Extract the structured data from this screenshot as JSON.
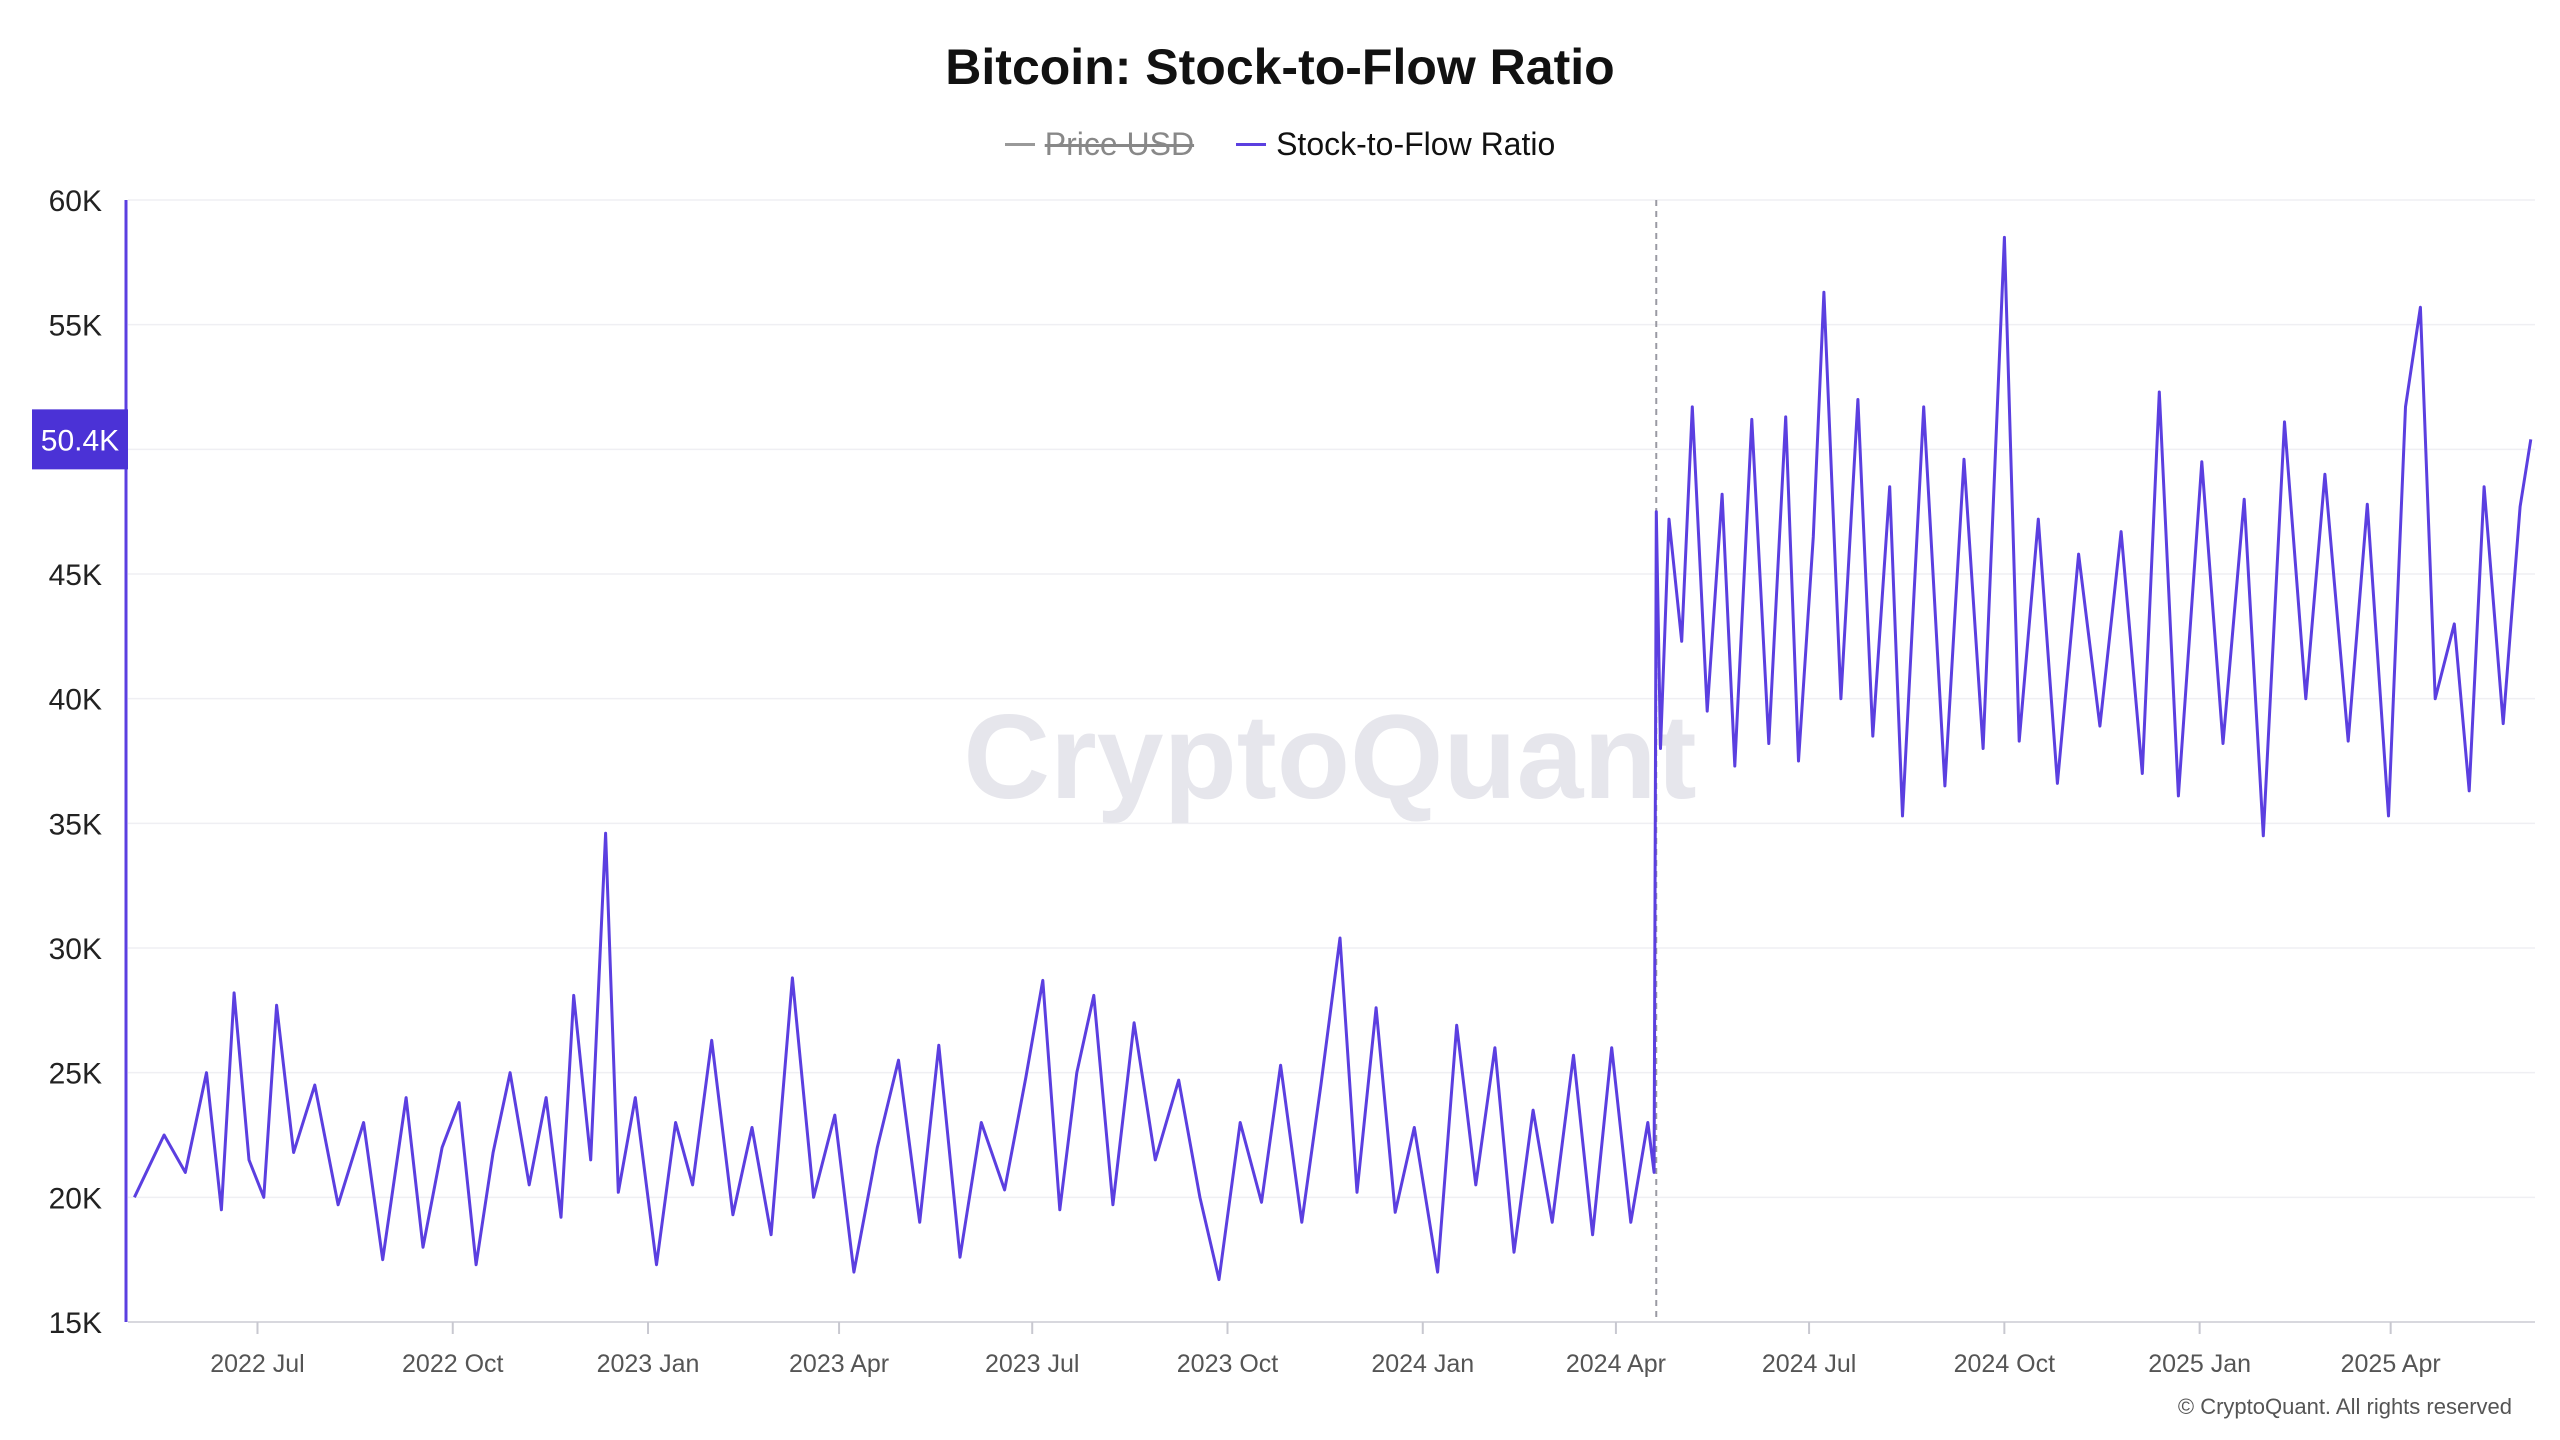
{
  "chart_data": {
    "type": "line",
    "title": "Bitcoin: Stock-to-Flow Ratio",
    "legend": [
      {
        "name": "Price USD",
        "color": "#999999",
        "hidden": true
      },
      {
        "name": "Stock-to-Flow Ratio",
        "color": "#5b3fe0",
        "hidden": false
      }
    ],
    "legend_position": "top-center",
    "y_ticks": [
      "15K",
      "20K",
      "25K",
      "30K",
      "35K",
      "40K",
      "45K",
      "50K",
      "55K",
      "60K"
    ],
    "y_tick_values": [
      15000,
      20000,
      25000,
      30000,
      35000,
      40000,
      45000,
      50000,
      55000,
      60000
    ],
    "ylim": [
      15000,
      60000
    ],
    "x_ticks": [
      "2022 Jul",
      "2022 Oct",
      "2023 Jan",
      "2023 Apr",
      "2023 Jul",
      "2023 Oct",
      "2024 Jan",
      "2024 Apr",
      "2024 Jul",
      "2024 Oct",
      "2025 Jan",
      "2025 Apr"
    ],
    "x_tick_dates": [
      "2022-07-01",
      "2022-10-01",
      "2023-01-01",
      "2023-04-01",
      "2023-07-01",
      "2023-10-01",
      "2024-01-01",
      "2024-04-01",
      "2024-07-01",
      "2024-10-01",
      "2025-01-01",
      "2025-04-01"
    ],
    "xlim": [
      "2022-05-01",
      "2025-06-08"
    ],
    "halving_marker_date": "2024-04-20",
    "last_value_label": "50.4K",
    "last_value": 50400,
    "grid": "horizontal",
    "series": [
      {
        "name": "Stock-to-Flow Ratio",
        "color": "#5b3fe0",
        "points": [
          [
            "2022-05-04",
            20000
          ],
          [
            "2022-05-18",
            22500
          ],
          [
            "2022-05-28",
            21000
          ],
          [
            "2022-06-07",
            25000
          ],
          [
            "2022-06-14",
            19500
          ],
          [
            "2022-06-20",
            28200
          ],
          [
            "2022-06-27",
            21500
          ],
          [
            "2022-07-04",
            20000
          ],
          [
            "2022-07-10",
            27700
          ],
          [
            "2022-07-18",
            21800
          ],
          [
            "2022-07-28",
            24500
          ],
          [
            "2022-08-08",
            19700
          ],
          [
            "2022-08-20",
            23000
          ],
          [
            "2022-08-29",
            17500
          ],
          [
            "2022-09-09",
            24000
          ],
          [
            "2022-09-17",
            18000
          ],
          [
            "2022-09-26",
            22000
          ],
          [
            "2022-10-04",
            23800
          ],
          [
            "2022-10-12",
            17300
          ],
          [
            "2022-10-20",
            21800
          ],
          [
            "2022-10-28",
            25000
          ],
          [
            "2022-11-06",
            20500
          ],
          [
            "2022-11-14",
            24000
          ],
          [
            "2022-11-21",
            19200
          ],
          [
            "2022-11-27",
            28100
          ],
          [
            "2022-12-05",
            21500
          ],
          [
            "2022-12-12",
            34600
          ],
          [
            "2022-12-18",
            20200
          ],
          [
            "2022-12-26",
            24000
          ],
          [
            "2023-01-05",
            17300
          ],
          [
            "2023-01-14",
            23000
          ],
          [
            "2023-01-22",
            20500
          ],
          [
            "2023-01-31",
            26300
          ],
          [
            "2023-02-10",
            19300
          ],
          [
            "2023-02-19",
            22800
          ],
          [
            "2023-02-28",
            18500
          ],
          [
            "2023-03-10",
            28800
          ],
          [
            "2023-03-20",
            20000
          ],
          [
            "2023-03-30",
            23300
          ],
          [
            "2023-04-08",
            17000
          ],
          [
            "2023-04-19",
            22000
          ],
          [
            "2023-04-29",
            25500
          ],
          [
            "2023-05-09",
            19000
          ],
          [
            "2023-05-18",
            26100
          ],
          [
            "2023-05-28",
            17600
          ],
          [
            "2023-06-07",
            23000
          ],
          [
            "2023-06-18",
            20300
          ],
          [
            "2023-06-28",
            24800
          ],
          [
            "2023-07-06",
            28700
          ],
          [
            "2023-07-14",
            19500
          ],
          [
            "2023-07-22",
            25000
          ],
          [
            "2023-07-30",
            28100
          ],
          [
            "2023-08-08",
            19700
          ],
          [
            "2023-08-18",
            27000
          ],
          [
            "2023-08-28",
            21500
          ],
          [
            "2023-09-08",
            24700
          ],
          [
            "2023-09-18",
            20000
          ],
          [
            "2023-09-27",
            16700
          ],
          [
            "2023-10-07",
            23000
          ],
          [
            "2023-10-17",
            19800
          ],
          [
            "2023-10-26",
            25300
          ],
          [
            "2023-11-05",
            19000
          ],
          [
            "2023-11-14",
            24500
          ],
          [
            "2023-11-23",
            30400
          ],
          [
            "2023-12-01",
            20200
          ],
          [
            "2023-12-10",
            27600
          ],
          [
            "2023-12-19",
            19400
          ],
          [
            "2023-12-28",
            22800
          ],
          [
            "2024-01-08",
            17000
          ],
          [
            "2024-01-17",
            26900
          ],
          [
            "2024-01-26",
            20500
          ],
          [
            "2024-02-04",
            26000
          ],
          [
            "2024-02-13",
            17800
          ],
          [
            "2024-02-22",
            23500
          ],
          [
            "2024-03-02",
            19000
          ],
          [
            "2024-03-12",
            25700
          ],
          [
            "2024-03-21",
            18500
          ],
          [
            "2024-03-30",
            26000
          ],
          [
            "2024-04-08",
            19000
          ],
          [
            "2024-04-16",
            23000
          ],
          [
            "2024-04-19",
            21000
          ],
          [
            "2024-04-20",
            47500
          ],
          [
            "2024-04-22",
            38000
          ],
          [
            "2024-04-26",
            47200
          ],
          [
            "2024-05-02",
            42300
          ],
          [
            "2024-05-07",
            51700
          ],
          [
            "2024-05-14",
            39500
          ],
          [
            "2024-05-21",
            48200
          ],
          [
            "2024-05-27",
            37300
          ],
          [
            "2024-06-04",
            51200
          ],
          [
            "2024-06-12",
            38200
          ],
          [
            "2024-06-20",
            51300
          ],
          [
            "2024-06-26",
            37500
          ],
          [
            "2024-07-03",
            46500
          ],
          [
            "2024-07-08",
            56300
          ],
          [
            "2024-07-16",
            40000
          ],
          [
            "2024-07-24",
            52000
          ],
          [
            "2024-07-31",
            38500
          ],
          [
            "2024-08-08",
            48500
          ],
          [
            "2024-08-14",
            35300
          ],
          [
            "2024-08-24",
            51700
          ],
          [
            "2024-09-03",
            36500
          ],
          [
            "2024-09-12",
            49600
          ],
          [
            "2024-09-21",
            38000
          ],
          [
            "2024-10-01",
            58500
          ],
          [
            "2024-10-08",
            38300
          ],
          [
            "2024-10-17",
            47200
          ],
          [
            "2024-10-26",
            36600
          ],
          [
            "2024-11-05",
            45800
          ],
          [
            "2024-11-15",
            38900
          ],
          [
            "2024-11-25",
            46700
          ],
          [
            "2024-12-05",
            37000
          ],
          [
            "2024-12-13",
            52300
          ],
          [
            "2024-12-22",
            36100
          ],
          [
            "2025-01-02",
            49500
          ],
          [
            "2025-01-12",
            38200
          ],
          [
            "2025-01-22",
            48000
          ],
          [
            "2025-01-31",
            34500
          ],
          [
            "2025-02-10",
            51100
          ],
          [
            "2025-02-20",
            40000
          ],
          [
            "2025-03-01",
            49000
          ],
          [
            "2025-03-12",
            38300
          ],
          [
            "2025-03-21",
            47800
          ],
          [
            "2025-03-31",
            35300
          ],
          [
            "2025-04-08",
            51700
          ],
          [
            "2025-04-15",
            55700
          ],
          [
            "2025-04-22",
            40000
          ],
          [
            "2025-05-01",
            43000
          ],
          [
            "2025-05-08",
            36300
          ],
          [
            "2025-05-15",
            48500
          ],
          [
            "2025-05-24",
            39000
          ],
          [
            "2025-06-01",
            47700
          ],
          [
            "2025-06-06",
            50400
          ]
        ]
      }
    ],
    "watermark": "CryptoQuant",
    "copyright": "© CryptoQuant. All rights reserved"
  }
}
